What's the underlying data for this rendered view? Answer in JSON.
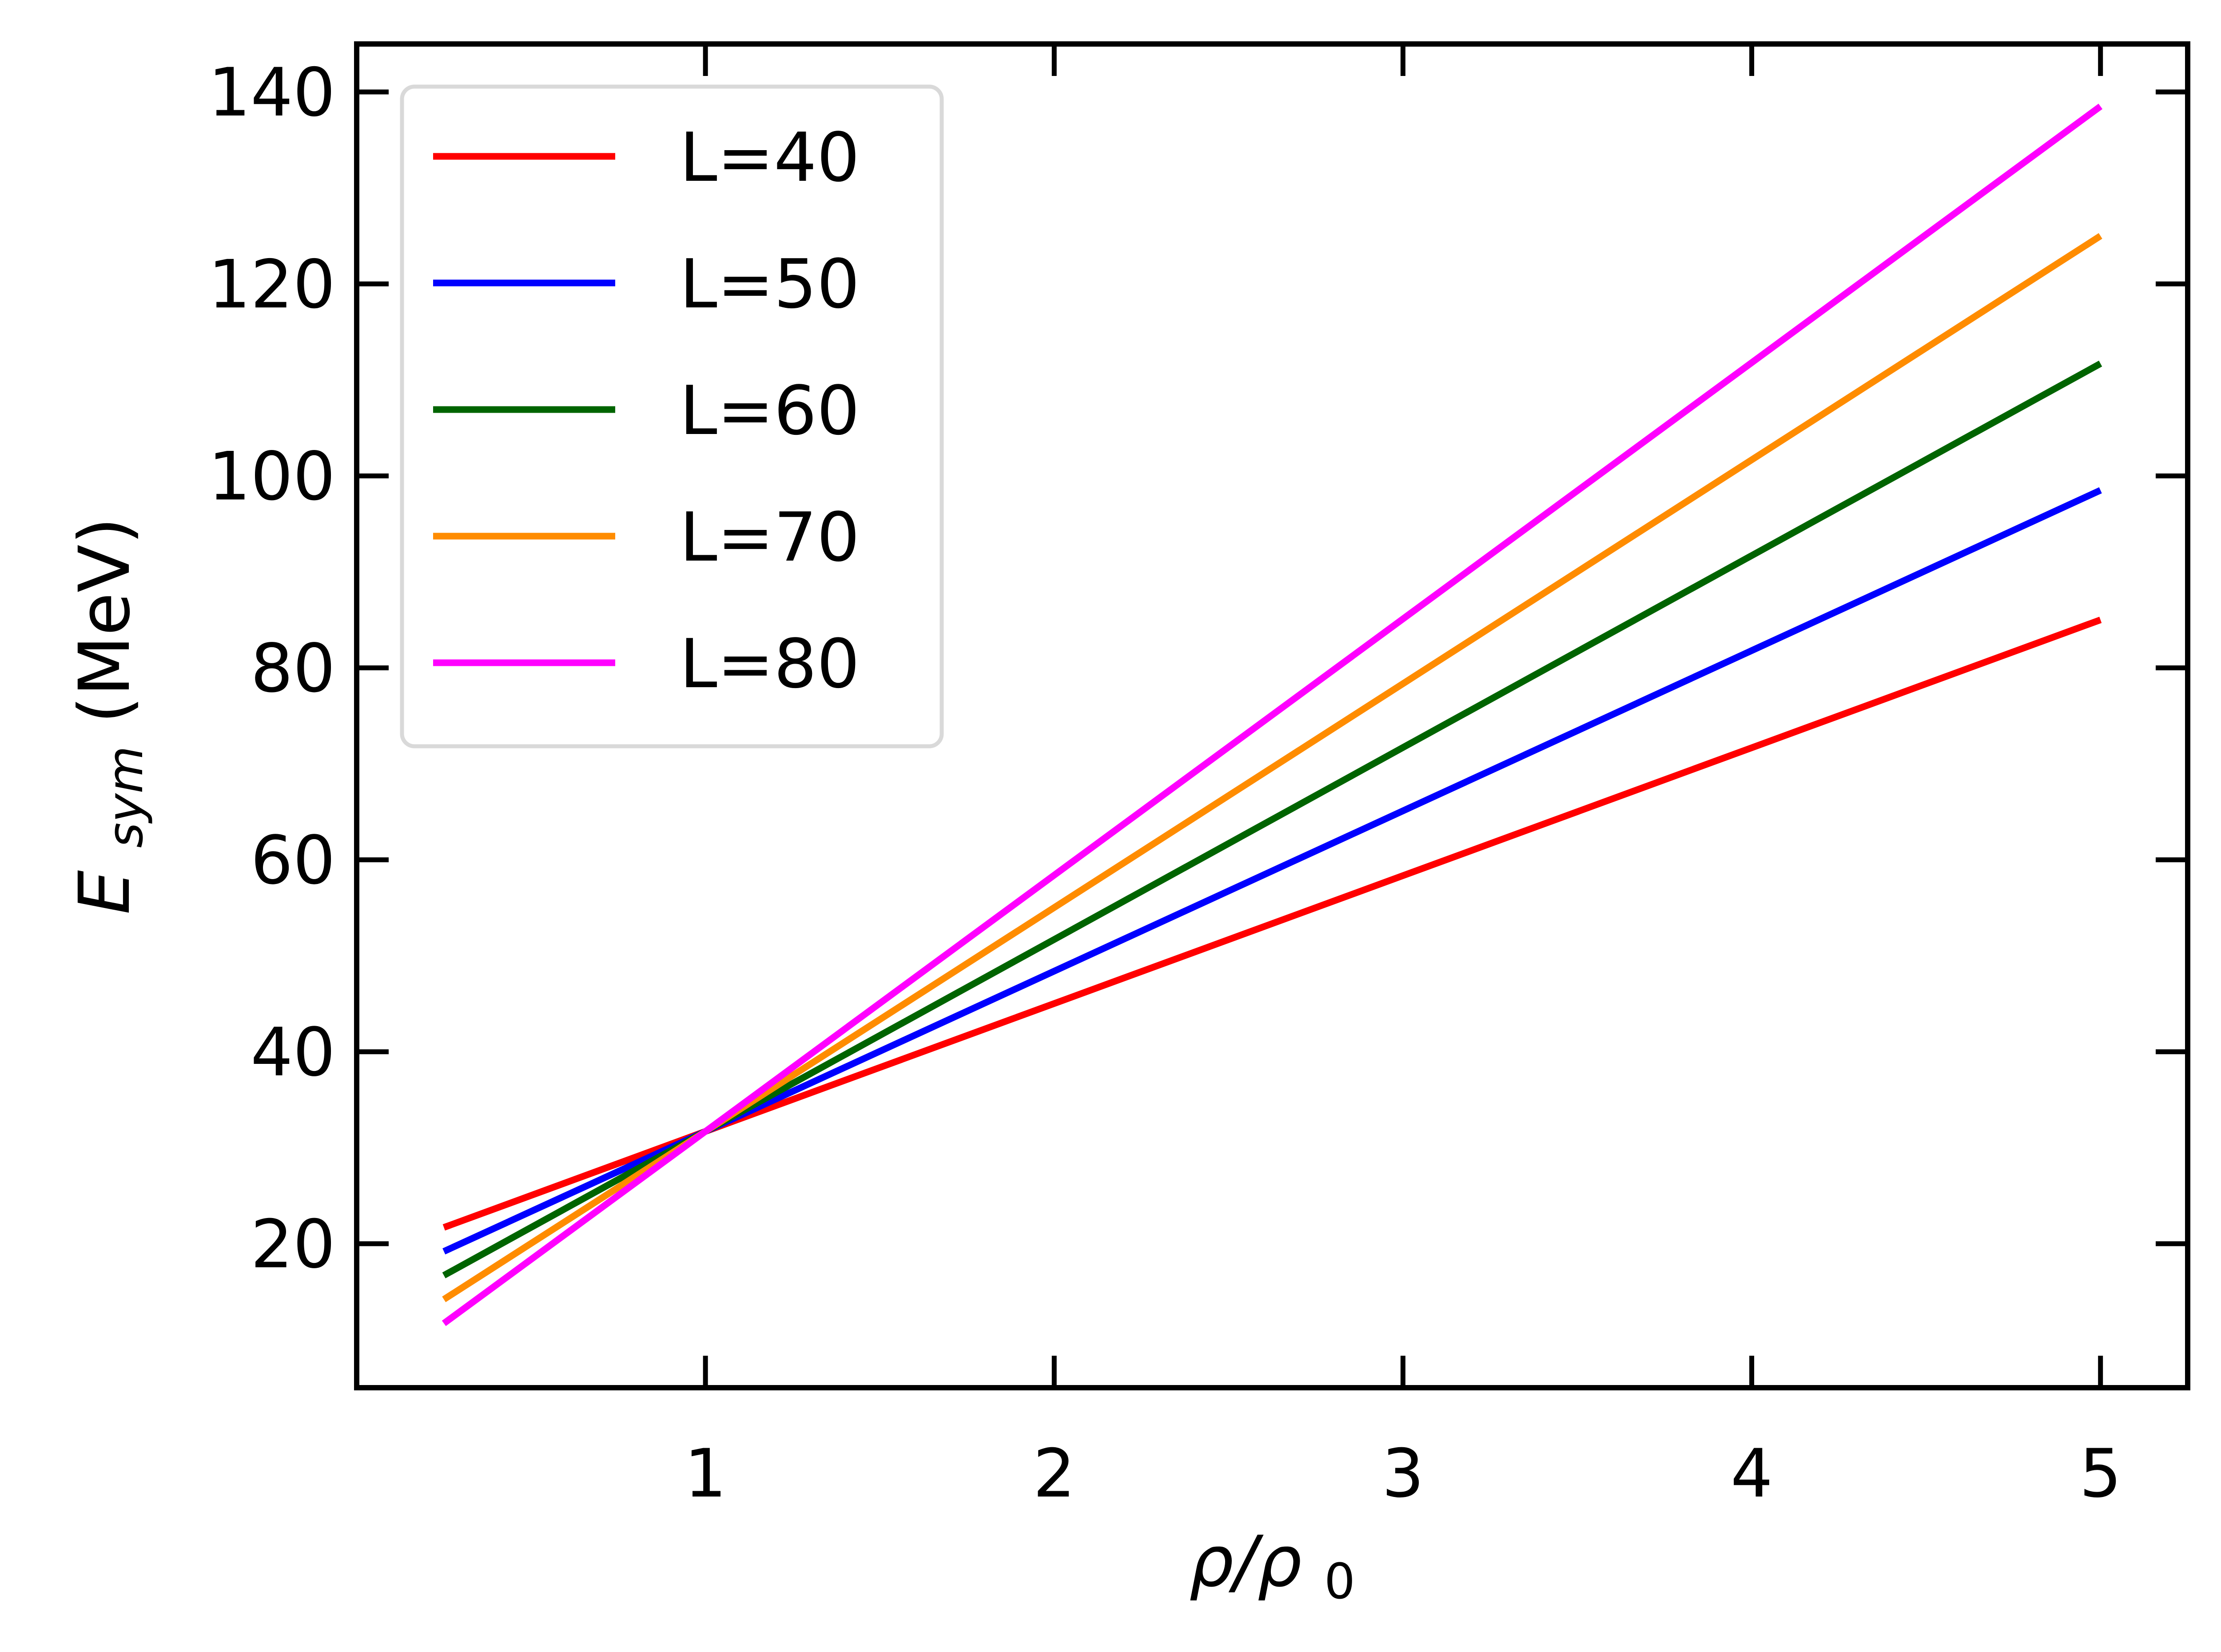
{
  "chart_data": {
    "type": "line",
    "title": "",
    "xlabel": {
      "main": "ρ/ρ",
      "subscript": "0"
    },
    "ylabel": {
      "main": "E",
      "subscript": "sym",
      "unit": "(MeV)"
    },
    "xlim": [
      0.0,
      5.25
    ],
    "ylim": [
      5.0,
      145.0
    ],
    "xticks": [
      1,
      2,
      3,
      4,
      5
    ],
    "yticks": [
      20,
      40,
      60,
      80,
      100,
      120,
      140
    ],
    "grid": false,
    "legend_position": "top-left",
    "x": [
      0.25,
      1.0,
      5.0
    ],
    "series": [
      {
        "name": "L=40",
        "color": "#ff0000",
        "values": [
          21.7,
          31.7,
          85.0
        ]
      },
      {
        "name": "L=50",
        "color": "#0000ff",
        "values": [
          19.2,
          31.7,
          98.5
        ]
      },
      {
        "name": "L=60",
        "color": "#006400",
        "values": [
          16.7,
          31.7,
          111.7
        ]
      },
      {
        "name": "L=70",
        "color": "#ff8c00",
        "values": [
          14.2,
          31.7,
          125.0
        ]
      },
      {
        "name": "L=80",
        "color": "#ff00ff",
        "values": [
          11.7,
          31.7,
          138.5
        ]
      }
    ]
  }
}
